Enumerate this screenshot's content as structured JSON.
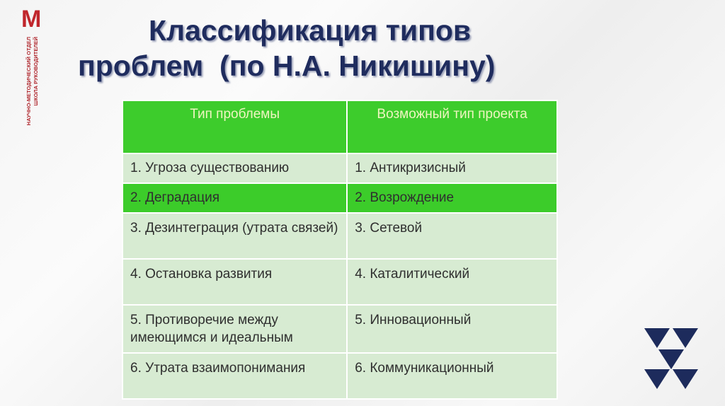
{
  "logo": {
    "letter": "М",
    "caption": [
      "НАУЧНО-МЕТОДИЧЕСКИЙ ОТДЕЛ",
      "ШКОЛА РУКОВОДИТЕЛЕЙ"
    ]
  },
  "title": [
    "Классификация типов",
    "проблем  (по Н.А. Никишину)"
  ],
  "table": {
    "header": [
      "Тип проблемы",
      "Возможный  тип проекта"
    ],
    "rows": [
      [
        "1. Угроза существованию",
        "1.   Антикризисный"
      ],
      [
        "2. Деградация",
        "2. Возрождение"
      ],
      [
        "3. Дезинтеграция (утрата связей)",
        "3. Сетевой"
      ],
      [
        "4. Остановка развития",
        "4. Каталитический"
      ],
      [
        "5. Противоречие между имеющимся и идеальным",
        "5. Инновационный"
      ],
      [
        "6. Утрата взаимопонимания",
        "6. Коммуникационный"
      ]
    ]
  }
}
